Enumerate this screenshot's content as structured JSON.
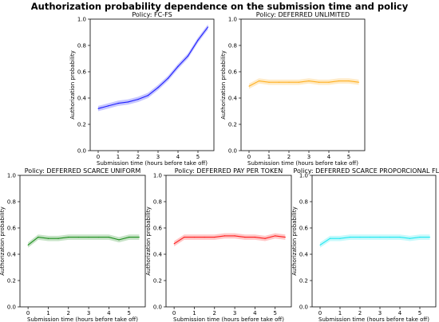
{
  "figure": {
    "title": "Authorization probability dependence on the submission time and policy"
  },
  "chart_data": [
    {
      "type": "line",
      "title": "Policy: FC-FS",
      "xlabel": "Submission time (hours before take off)",
      "ylabel": "Authorization probability",
      "xlim": [
        -0.4,
        5.8
      ],
      "ylim": [
        0.0,
        1.0
      ],
      "xticks": [
        "0",
        "1",
        "2",
        "3",
        "4",
        "5"
      ],
      "yticks": [
        "0.0",
        "0.2",
        "0.4",
        "0.6",
        "0.8",
        "1.0"
      ],
      "grid": false,
      "color": "#0000ff",
      "series": [
        {
          "x": [
            0,
            0.5,
            1,
            1.5,
            2,
            2.5,
            3,
            3.5,
            4,
            4.5,
            5,
            5.5
          ],
          "values": [
            0.32,
            0.34,
            0.36,
            0.37,
            0.39,
            0.42,
            0.48,
            0.55,
            0.64,
            0.72,
            0.84,
            0.94
          ],
          "band_width": 0.02
        }
      ]
    },
    {
      "type": "line",
      "title": "Policy: DEFERRED UNLIMITED",
      "xlabel": "Submission time (hours before take off)",
      "ylabel": "Authorization probability",
      "xlim": [
        -0.4,
        5.8
      ],
      "ylim": [
        0.0,
        1.0
      ],
      "xticks": [
        "0",
        "1",
        "2",
        "3",
        "4",
        "5"
      ],
      "yticks": [
        "0.0",
        "0.2",
        "0.4",
        "0.6",
        "0.8",
        "1.0"
      ],
      "grid": false,
      "color": "#ffa500",
      "series": [
        {
          "x": [
            0,
            0.5,
            1,
            1.5,
            2,
            2.5,
            3,
            3.5,
            4,
            4.5,
            5,
            5.5
          ],
          "values": [
            0.49,
            0.53,
            0.52,
            0.52,
            0.52,
            0.52,
            0.53,
            0.52,
            0.52,
            0.53,
            0.53,
            0.52
          ],
          "band_width": 0.02
        }
      ]
    },
    {
      "type": "line",
      "title": "Policy: DEFERRED SCARCE UNIFORM",
      "xlabel": "Submission time (hours before take off)",
      "ylabel": "Authorization probability",
      "xlim": [
        -0.4,
        5.8
      ],
      "ylim": [
        0.0,
        1.0
      ],
      "xticks": [
        "0",
        "1",
        "2",
        "3",
        "4",
        "5"
      ],
      "yticks": [
        "0.0",
        "0.2",
        "0.4",
        "0.6",
        "0.8",
        "1.0"
      ],
      "grid": false,
      "color": "#008000",
      "series": [
        {
          "x": [
            0,
            0.5,
            1,
            1.5,
            2,
            2.5,
            3,
            3.5,
            4,
            4.5,
            5,
            5.5
          ],
          "values": [
            0.47,
            0.53,
            0.52,
            0.52,
            0.53,
            0.53,
            0.53,
            0.53,
            0.53,
            0.51,
            0.53,
            0.53
          ],
          "band_width": 0.02
        }
      ]
    },
    {
      "type": "line",
      "title": "Policy: DEFERRED PAY PER TOKEN",
      "xlabel": "Submission time (hours before take off)",
      "ylabel": "Authorization probability",
      "xlim": [
        -0.4,
        5.8
      ],
      "ylim": [
        0.0,
        1.0
      ],
      "xticks": [
        "0",
        "1",
        "2",
        "3",
        "4",
        "5"
      ],
      "yticks": [
        "0.0",
        "0.2",
        "0.4",
        "0.6",
        "0.8",
        "1.0"
      ],
      "grid": false,
      "color": "#ff0000",
      "series": [
        {
          "x": [
            0,
            0.5,
            1,
            1.5,
            2,
            2.5,
            3,
            3.5,
            4,
            4.5,
            5,
            5.5
          ],
          "values": [
            0.48,
            0.53,
            0.53,
            0.53,
            0.53,
            0.54,
            0.54,
            0.53,
            0.53,
            0.52,
            0.54,
            0.53
          ],
          "band_width": 0.02
        }
      ]
    },
    {
      "type": "line",
      "title": "Policy: DEFERRED SCARCE PROPORCIONAL FLIGHT",
      "xlabel": "Submission time (hours before take off)",
      "ylabel": "Authorization probability",
      "xlim": [
        -0.4,
        5.8
      ],
      "ylim": [
        0.0,
        1.0
      ],
      "xticks": [
        "0",
        "1",
        "2",
        "3",
        "4",
        "5"
      ],
      "yticks": [
        "0.0",
        "0.2",
        "0.4",
        "0.6",
        "0.8",
        "1.0"
      ],
      "grid": false,
      "color": "#00e5ee",
      "series": [
        {
          "x": [
            0,
            0.5,
            1,
            1.5,
            2,
            2.5,
            3,
            3.5,
            4,
            4.5,
            5,
            5.5
          ],
          "values": [
            0.47,
            0.52,
            0.52,
            0.53,
            0.53,
            0.53,
            0.53,
            0.53,
            0.53,
            0.52,
            0.53,
            0.53
          ],
          "band_width": 0.02
        }
      ]
    }
  ]
}
